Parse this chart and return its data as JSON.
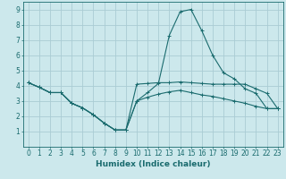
{
  "xlabel": "Humidex (Indice chaleur)",
  "background_color": "#cce8ec",
  "grid_color": "#aaccd4",
  "line_color": "#1a6b6e",
  "xlim": [
    -0.5,
    23.5
  ],
  "ylim": [
    0,
    9.5
  ],
  "xticks": [
    0,
    1,
    2,
    3,
    4,
    5,
    6,
    7,
    8,
    9,
    10,
    11,
    12,
    13,
    14,
    15,
    16,
    17,
    18,
    19,
    20,
    21,
    22,
    23
  ],
  "yticks": [
    1,
    2,
    3,
    4,
    5,
    6,
    7,
    8,
    9
  ],
  "line1_x": [
    0,
    1,
    2,
    3,
    4,
    5,
    6,
    7,
    8,
    9,
    10,
    11,
    12,
    13,
    14,
    15,
    16,
    17,
    18,
    19,
    20,
    21,
    22,
    23
  ],
  "line1_y": [
    4.2,
    3.9,
    3.55,
    3.55,
    2.85,
    2.55,
    2.1,
    1.55,
    1.1,
    1.1,
    4.1,
    4.15,
    4.2,
    4.2,
    4.25,
    4.2,
    4.15,
    4.1,
    4.1,
    4.1,
    4.1,
    3.8,
    3.5,
    2.5
  ],
  "line2_x": [
    0,
    1,
    2,
    3,
    4,
    5,
    6,
    7,
    8,
    9,
    10,
    11,
    12,
    13,
    14,
    15,
    16,
    17,
    18,
    19,
    20,
    21,
    22,
    23
  ],
  "line2_y": [
    4.2,
    3.9,
    3.55,
    3.55,
    2.85,
    2.55,
    2.1,
    1.55,
    1.1,
    1.1,
    3.0,
    3.55,
    4.15,
    7.3,
    8.85,
    9.0,
    7.6,
    6.0,
    4.85,
    4.45,
    3.8,
    3.5,
    2.5,
    2.5
  ],
  "line3_x": [
    0,
    1,
    2,
    3,
    4,
    5,
    6,
    7,
    8,
    9,
    10,
    11,
    12,
    13,
    14,
    15,
    16,
    17,
    18,
    19,
    20,
    21,
    22,
    23
  ],
  "line3_y": [
    4.2,
    3.9,
    3.55,
    3.55,
    2.85,
    2.55,
    2.1,
    1.55,
    1.1,
    1.1,
    3.0,
    3.25,
    3.45,
    3.6,
    3.7,
    3.55,
    3.4,
    3.3,
    3.15,
    3.0,
    2.85,
    2.65,
    2.5,
    2.5
  ]
}
